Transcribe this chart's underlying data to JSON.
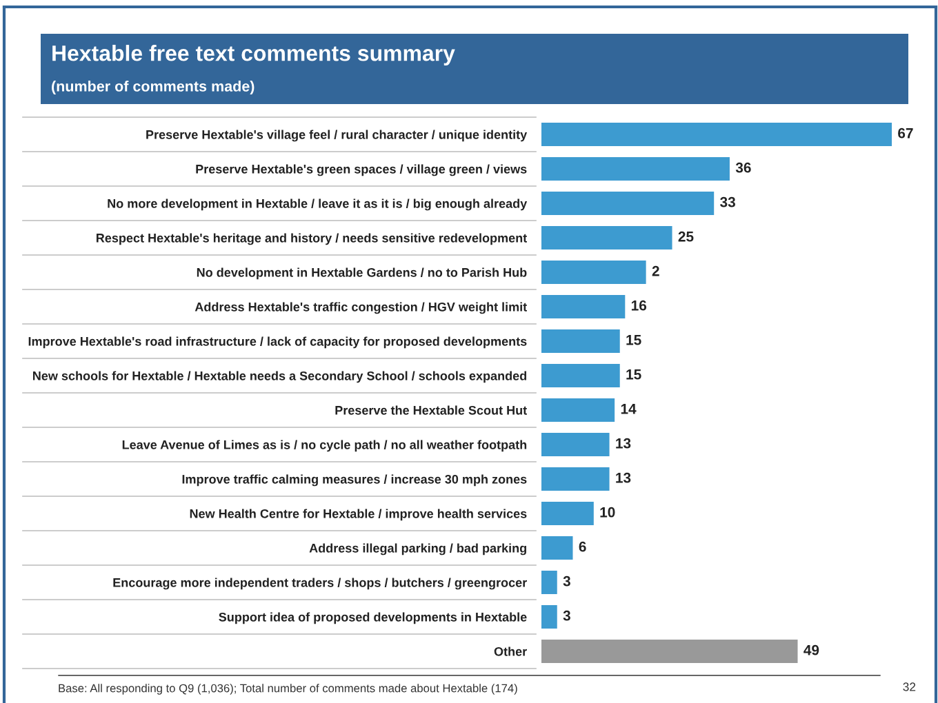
{
  "chart_data": {
    "type": "bar",
    "orientation": "horizontal",
    "title": "Hextable free text comments summary",
    "subtitle": "(number of comments made)",
    "categories": [
      "Preserve Hextable's village feel / rural character / unique identity",
      "Preserve Hextable's green spaces / village green / views",
      "No more development in Hextable / leave it as it is / big enough already",
      "Respect Hextable's heritage and history / needs sensitive redevelopment",
      "No development in Hextable Gardens / no to Parish Hub",
      "Address Hextable's traffic congestion / HGV weight limit",
      "Improve Hextable's road infrastructure / lack of capacity for proposed developments",
      "New schools for Hextable / Hextable needs a Secondary School / schools expanded",
      "Preserve the Hextable Scout Hut",
      "Leave Avenue of Limes as is / no cycle path / no all weather footpath",
      "Improve traffic calming measures / increase 30 mph zones",
      "New Health Centre for Hextable / improve health services",
      "Address illegal parking / bad parking",
      "Encourage more independent traders / shops / butchers / greengrocer",
      "Support idea of proposed developments in Hextable",
      "Other"
    ],
    "values": [
      67,
      36,
      33,
      25,
      20,
      16,
      15,
      15,
      14,
      13,
      13,
      10,
      6,
      3,
      3,
      49
    ],
    "value_labels": [
      "67",
      "36",
      "33",
      "25",
      null,
      "16",
      "15",
      "15",
      "14",
      "13",
      "13",
      "10",
      "6",
      "3",
      "3",
      "49"
    ],
    "colors": [
      "#3d9bd0",
      "#3d9bd0",
      "#3d9bd0",
      "#3d9bd0",
      "#3d9bd0",
      "#3d9bd0",
      "#3d9bd0",
      "#3d9bd0",
      "#3d9bd0",
      "#3d9bd0",
      "#3d9bd0",
      "#3d9bd0",
      "#3d9bd0",
      "#3d9bd0",
      "#3d9bd0",
      "#999999"
    ],
    "tick_labels": "y",
    "grid": false,
    "legend": false,
    "annotations": [
      {
        "text": "2",
        "x": 20,
        "y": "No development in Hextable Gardens / no to Parish Hub"
      },
      "Base: All responding to Q9 (1,036); Total number of comments made about Hextable (174)",
      "32"
    ]
  }
}
